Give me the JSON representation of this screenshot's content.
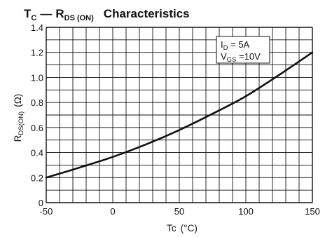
{
  "chart_data": {
    "type": "line",
    "title": {
      "var1_main": "T",
      "var1_sub": "C",
      "dash": "—",
      "var2_main": "R",
      "var2_sub": "DS (ON)",
      "rest": "Characteristics"
    },
    "xlabel": {
      "main": "Tc",
      "unit": "(°C)"
    },
    "ylabel": {
      "main": "R",
      "sub": "DS(ON)",
      "unit": "(Ω)"
    },
    "xlim": [
      -50,
      150
    ],
    "ylim": [
      0,
      1.4
    ],
    "x_ticks": [
      "-50",
      "0",
      "50",
      "100",
      "150"
    ],
    "y_ticks": [
      "0",
      "0.2",
      "0.4",
      "0.6",
      "0.8",
      "1.0",
      "1.2",
      "1.4"
    ],
    "grid": true,
    "conditions": [
      {
        "main": "I",
        "sub": "D",
        "rest": " = 5A"
      },
      {
        "main": "V",
        "sub": "GS",
        "rest": " =10V"
      }
    ],
    "series": [
      {
        "x": [
          -50,
          -25,
          0,
          25,
          50,
          75,
          100,
          125,
          150
        ],
        "y": [
          0.2,
          0.28,
          0.365,
          0.465,
          0.58,
          0.71,
          0.85,
          1.02,
          1.2
        ]
      }
    ]
  }
}
